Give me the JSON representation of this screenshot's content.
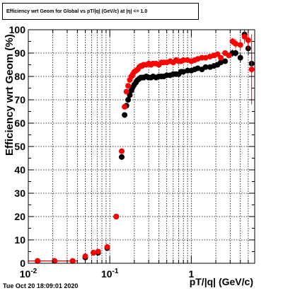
{
  "chart_data": {
    "type": "scatter",
    "title": "Efficiency wrt Geom for Global vs pT/|q| (GeV/c) at |η| <= 1.0",
    "xlabel": "pT/|q| (GeV/c)",
    "ylabel": "Efficiency wrt Geom (%)",
    "xscale": "log",
    "xlim": [
      0.01,
      6
    ],
    "ylim": [
      0,
      100
    ],
    "grid": true,
    "x_tick_labels": [
      "10^-2",
      "10^-1",
      "1"
    ],
    "y_tick_labels": [
      "0",
      "10",
      "20",
      "30",
      "40",
      "50",
      "60",
      "70",
      "80",
      "90",
      "100"
    ],
    "series": [
      {
        "color": "#000000",
        "x": [
          0.013,
          0.021,
          0.035,
          0.05,
          0.063,
          0.072,
          0.093,
          0.12,
          0.14,
          0.152,
          0.16,
          0.168,
          0.176,
          0.184,
          0.192,
          0.2,
          0.21,
          0.22,
          0.23,
          0.24,
          0.25,
          0.26,
          0.28,
          0.3,
          0.32,
          0.34,
          0.37,
          0.4,
          0.43,
          0.46,
          0.5,
          0.55,
          0.6,
          0.65,
          0.7,
          0.75,
          0.8,
          0.9,
          1.0,
          1.1,
          1.2,
          1.35,
          1.5,
          1.7,
          1.9,
          2.1,
          2.3,
          2.6,
          2.9,
          3.2,
          3.5,
          4.0,
          4.5,
          5.0,
          5.5
        ],
        "y": [
          1,
          1,
          1,
          2.5,
          4.5,
          4.5,
          6.5,
          20,
          45.5,
          63.5,
          67.5,
          70,
          72,
          74,
          75.5,
          76.5,
          77.5,
          78.5,
          79,
          79.5,
          79.5,
          79.5,
          80,
          79.5,
          79.5,
          80,
          79.5,
          80,
          80,
          80,
          80.5,
          80.5,
          81,
          81,
          81,
          82,
          82,
          82.5,
          82.5,
          83,
          83.5,
          83,
          84,
          84,
          84.5,
          85,
          86,
          86.5,
          89,
          90,
          90,
          88,
          98,
          92,
          85.5
        ],
        "yerr": [
          0,
          0,
          0,
          0,
          0,
          0,
          0,
          0,
          0,
          0,
          0,
          0,
          0,
          0,
          0,
          0,
          0,
          0,
          0,
          0,
          0,
          0,
          0,
          0,
          0,
          0,
          0,
          0,
          0,
          0,
          0,
          0,
          0,
          0,
          0,
          0,
          0,
          0,
          0,
          0,
          0,
          0,
          0,
          0,
          0,
          1,
          1,
          1,
          1,
          1.5,
          1.5,
          2,
          2,
          3,
          4
        ]
      },
      {
        "color": "#ff0000",
        "x": [
          0.013,
          0.021,
          0.035,
          0.05,
          0.063,
          0.072,
          0.093,
          0.12,
          0.14,
          0.152,
          0.16,
          0.168,
          0.176,
          0.184,
          0.192,
          0.2,
          0.21,
          0.22,
          0.23,
          0.24,
          0.25,
          0.26,
          0.28,
          0.3,
          0.32,
          0.34,
          0.37,
          0.4,
          0.43,
          0.46,
          0.5,
          0.55,
          0.6,
          0.65,
          0.7,
          0.75,
          0.8,
          0.9,
          1.0,
          1.1,
          1.2,
          1.35,
          1.5,
          1.7,
          1.9,
          2.1,
          2.3,
          2.6,
          2.9,
          3.2,
          3.5,
          4.0,
          4.5,
          5.0,
          5.5
        ],
        "y": [
          1,
          1,
          1,
          3,
          4.5,
          5,
          7,
          20,
          48,
          67,
          73.5,
          76,
          78.5,
          80,
          81,
          82,
          82.5,
          83,
          84,
          84.5,
          84.5,
          85,
          85,
          85.5,
          85,
          85.5,
          85.5,
          85,
          86,
          86,
          86,
          86.5,
          86,
          87,
          86.5,
          86.5,
          87,
          87,
          86.5,
          87,
          87.5,
          88,
          88,
          88.5,
          89,
          89.5,
          88,
          90,
          89,
          95,
          94,
          93.5,
          97,
          95.5,
          83
        ],
        "yerr": [
          0,
          0,
          0,
          0,
          0,
          0,
          0,
          0,
          0,
          0,
          0,
          0,
          0,
          0,
          0,
          0,
          0,
          0,
          0,
          0,
          0,
          0,
          0,
          0,
          0,
          0,
          0,
          0,
          0,
          0,
          0,
          0,
          0,
          0,
          0,
          0,
          0,
          0,
          0,
          0,
          0,
          0,
          0,
          0,
          0,
          1,
          1,
          1,
          1,
          1.5,
          2,
          2.5,
          3,
          4,
          15
        ]
      }
    ]
  },
  "datestamp": "Tue Oct 20 18:09:01 2020"
}
